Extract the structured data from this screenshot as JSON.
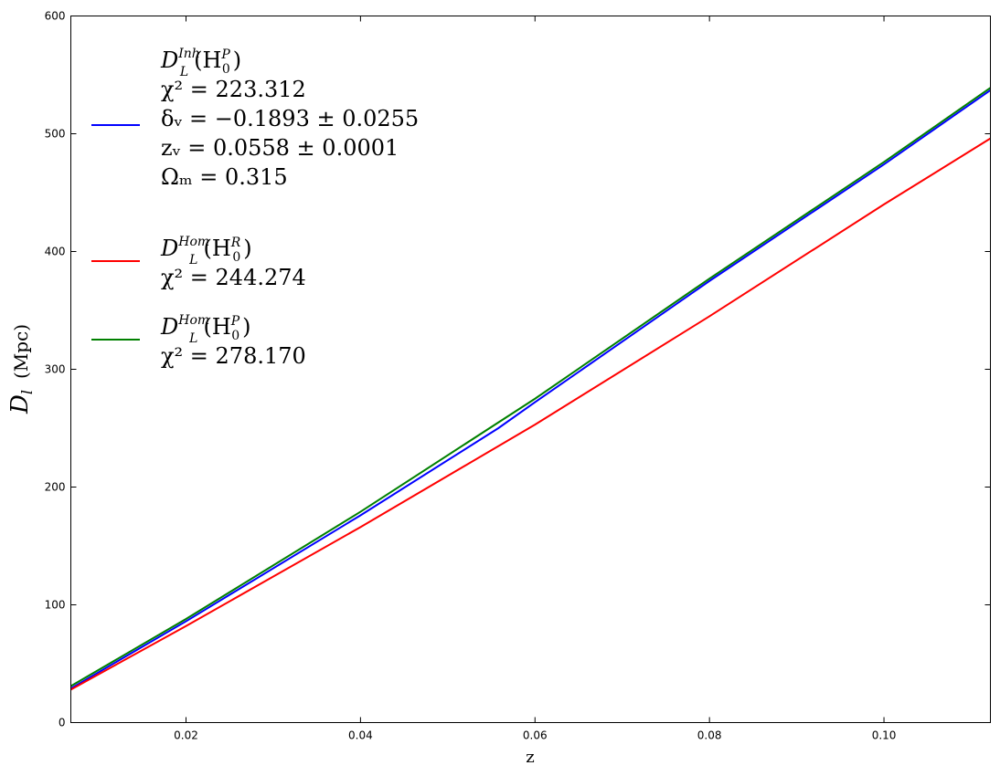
{
  "chart_data": {
    "type": "line",
    "xlabel": "z",
    "ylabel": "D_l (Mpc)",
    "xlim": [
      0.0068,
      0.1122
    ],
    "ylim": [
      0,
      600
    ],
    "xticks": [
      {
        "value": 0.02,
        "label": "0.02"
      },
      {
        "value": 0.04,
        "label": "0.04"
      },
      {
        "value": 0.06,
        "label": "0.06"
      },
      {
        "value": 0.08,
        "label": "0.08"
      },
      {
        "value": 0.1,
        "label": "0.10"
      }
    ],
    "yticks": [
      {
        "value": 0,
        "label": "0"
      },
      {
        "value": 100,
        "label": "100"
      },
      {
        "value": 200,
        "label": "200"
      },
      {
        "value": 300,
        "label": "300"
      },
      {
        "value": 400,
        "label": "400"
      },
      {
        "value": 500,
        "label": "500"
      },
      {
        "value": 600,
        "label": "600"
      }
    ],
    "grid": false,
    "legend_position": "upper-left",
    "series": [
      {
        "key": "inh_p",
        "color": "#0000ff",
        "points": [
          [
            0.0068,
            29
          ],
          [
            0.02,
            86
          ],
          [
            0.04,
            176
          ],
          [
            0.0558,
            250
          ],
          [
            0.06,
            272
          ],
          [
            0.08,
            375
          ],
          [
            0.1,
            474
          ],
          [
            0.1122,
            537
          ]
        ],
        "legend_lines": [
          {
            "main": "D",
            "sub": "L",
            "sup": "Inh",
            "rest": "(H",
            "rsub": "0",
            "rsup": "P",
            "close": ")"
          },
          {
            "text": "χ² = 223.312"
          },
          {
            "text": "δᵥ = −0.1893 ± 0.0255"
          },
          {
            "text": "zᵥ = 0.0558 ± 0.0001"
          },
          {
            "text": "Ωₘ = 0.315"
          }
        ]
      },
      {
        "key": "hom_r",
        "color": "#ff0000",
        "points": [
          [
            0.0068,
            28
          ],
          [
            0.02,
            82
          ],
          [
            0.04,
            166
          ],
          [
            0.06,
            253
          ],
          [
            0.08,
            345
          ],
          [
            0.1,
            440
          ],
          [
            0.1122,
            496
          ]
        ],
        "legend_lines": [
          {
            "main": "D",
            "sub": "L",
            "sup": "Hom",
            "rest": "(H",
            "rsub": "0",
            "rsup": "R",
            "close": ")"
          },
          {
            "text": "χ² = 244.274"
          }
        ]
      },
      {
        "key": "hom_p",
        "color": "#008000",
        "points": [
          [
            0.0068,
            31
          ],
          [
            0.02,
            88
          ],
          [
            0.04,
            179
          ],
          [
            0.06,
            275
          ],
          [
            0.08,
            377
          ],
          [
            0.1,
            476
          ],
          [
            0.1122,
            539
          ]
        ],
        "legend_lines": [
          {
            "main": "D",
            "sub": "L",
            "sup": "Hom",
            "rest": "(H",
            "rsub": "0",
            "rsup": "P",
            "close": ")"
          },
          {
            "text": "χ² = 278.170"
          }
        ]
      }
    ]
  }
}
